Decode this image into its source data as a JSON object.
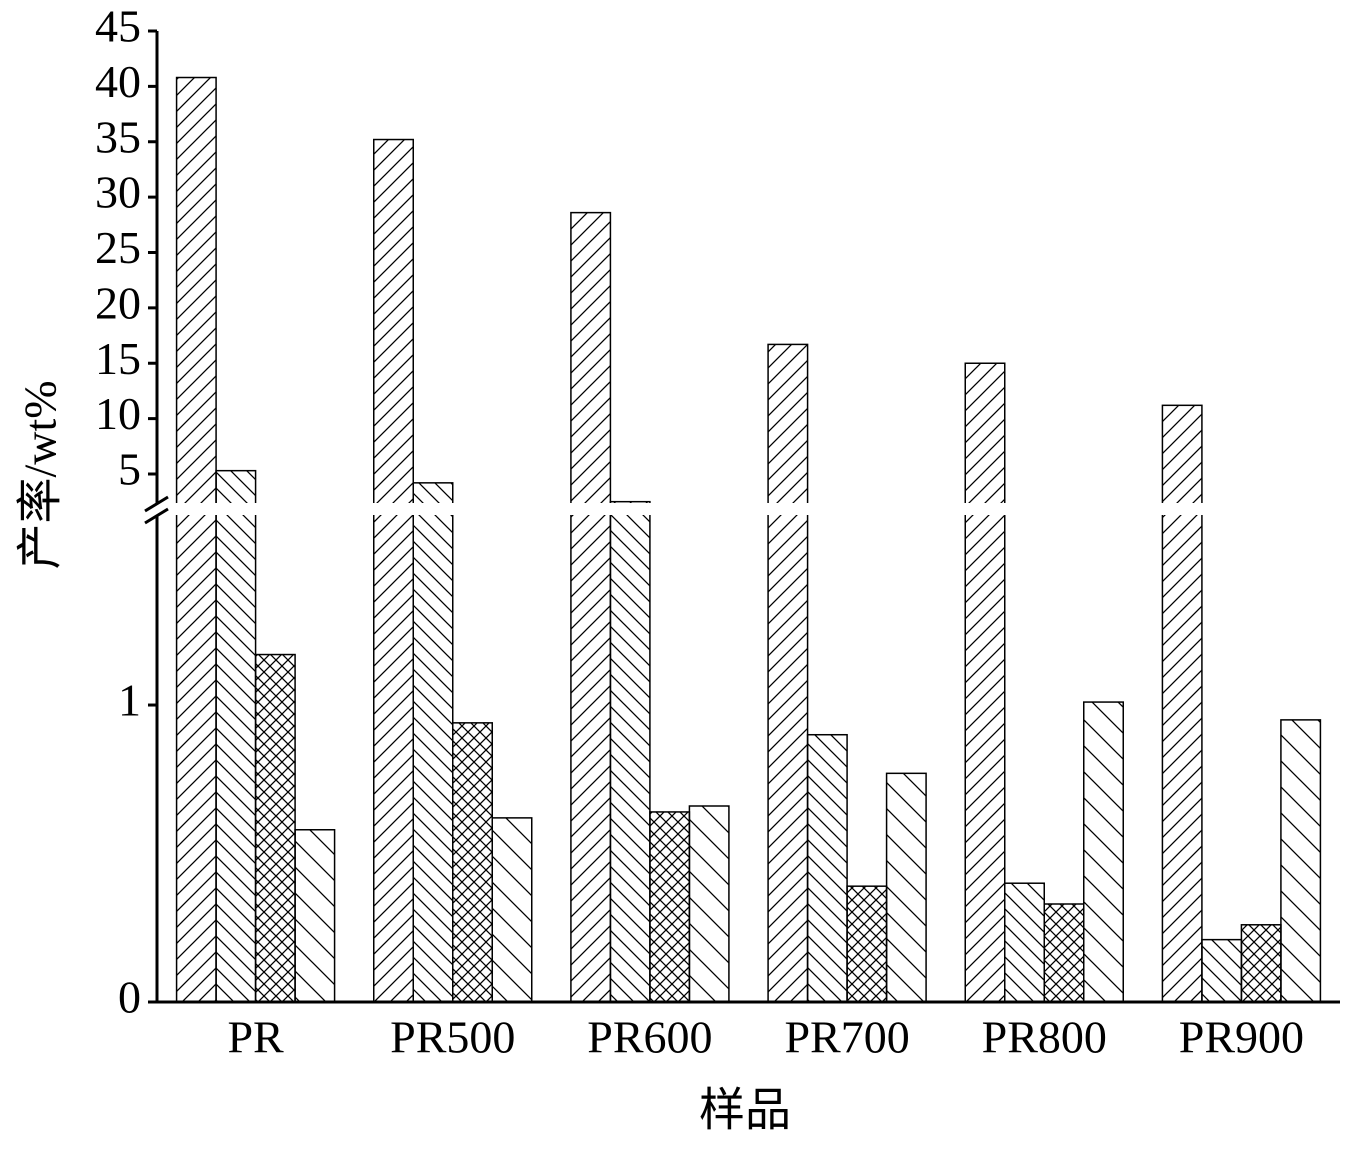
{
  "chart_data": {
    "type": "bar",
    "x_label": "样品",
    "y_label": "产率/wt%",
    "categories": [
      "PR",
      "PR500",
      "PR600",
      "PR700",
      "PR800",
      "PR900"
    ],
    "series": [
      {
        "hatch": "//",
        "color": "#000000",
        "values": [
          40.8,
          35.2,
          28.6,
          16.7,
          15.0,
          11.2
        ]
      },
      {
        "hatch": "\\\\\\\\",
        "color": "#000000",
        "values": [
          5.3,
          4.2,
          2.5,
          0.9,
          0.4,
          0.21
        ]
      },
      {
        "hatch": "xx",
        "color": "#000000",
        "values": [
          1.17,
          0.94,
          0.64,
          0.39,
          0.33,
          0.26
        ]
      },
      {
        "hatch": "\\\\",
        "color": "#000000",
        "values": [
          0.58,
          0.62,
          0.66,
          0.77,
          1.01,
          0.95
        ]
      }
    ],
    "ylim": [
      0,
      45
    ],
    "y_break": [
      1.65,
      2.2
    ],
    "yticks": [
      0,
      1,
      5,
      10,
      15,
      20,
      25,
      30,
      35,
      40,
      45
    ]
  }
}
